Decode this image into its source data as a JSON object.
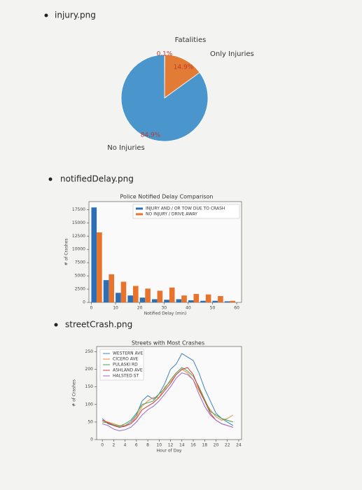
{
  "bullets": [
    "injury.png",
    "notifiedDelay.png",
    "streetCrash.png"
  ],
  "chart_data": [
    {
      "type": "pie",
      "categories": [
        "Fatalities",
        "Only Injuries",
        "No Injuries"
      ],
      "values": [
        0.1,
        14.9,
        84.9
      ],
      "value_labels": [
        "0.1%",
        "14.9%",
        "84.9%"
      ],
      "colors": [
        "#4caf50",
        "#e27b36",
        "#4a96cc"
      ]
    },
    {
      "type": "bar",
      "title": "Police Notified Delay Comparison",
      "x_label": "Notified Delay (min)",
      "y_label": "# of Crashes",
      "x": [
        0,
        5,
        10,
        15,
        20,
        25,
        30,
        35,
        40,
        45,
        50,
        55
      ],
      "series": [
        {
          "name": "INJURY AND / OR TOW DUE TO CRASH",
          "color": "#2c6fb5",
          "values": [
            17900,
            4200,
            1800,
            1300,
            900,
            600,
            500,
            600,
            400,
            300,
            300,
            200
          ]
        },
        {
          "name": "NO INJURY / DRIVE AWAY",
          "color": "#e8732c",
          "values": [
            13200,
            5300,
            3900,
            3100,
            2600,
            2200,
            2800,
            1300,
            1600,
            1500,
            1200,
            300
          ]
        }
      ],
      "xlim": [
        -1,
        62
      ],
      "xticks": [
        0,
        10,
        20,
        30,
        40,
        50,
        60
      ],
      "ylim": [
        0,
        19000
      ],
      "yticks": [
        0,
        2500,
        5000,
        7500,
        10000,
        12500,
        15000,
        17500
      ]
    },
    {
      "type": "line",
      "title": "Streets with Most Crashes",
      "x_label": "Hour of Day",
      "y_label": "# of Crashes",
      "x": [
        0,
        1,
        2,
        3,
        4,
        5,
        6,
        7,
        8,
        9,
        10,
        11,
        12,
        13,
        14,
        15,
        16,
        17,
        18,
        19,
        20,
        21,
        22,
        23
      ],
      "series": [
        {
          "name": "WESTERN AVE",
          "color": "#3b7fc0",
          "values": [
            60,
            45,
            40,
            35,
            40,
            50,
            70,
            110,
            125,
            115,
            130,
            160,
            200,
            215,
            245,
            235,
            225,
            190,
            145,
            110,
            75,
            60,
            50,
            40
          ]
        },
        {
          "name": "CICERO AVE",
          "color": "#f08a3c",
          "values": [
            55,
            50,
            45,
            40,
            40,
            45,
            65,
            95,
            110,
            120,
            120,
            150,
            165,
            185,
            200,
            190,
            170,
            140,
            110,
            85,
            65,
            55,
            60,
            70
          ]
        },
        {
          "name": "PULASKI RD",
          "color": "#3fa34d",
          "values": [
            50,
            48,
            42,
            38,
            45,
            55,
            75,
            100,
            105,
            110,
            130,
            145,
            170,
            190,
            205,
            195,
            180,
            150,
            115,
            80,
            70,
            60,
            55,
            50
          ]
        },
        {
          "name": "ASHLAND AVE",
          "color": "#d33b3b",
          "values": [
            55,
            48,
            40,
            35,
            38,
            45,
            60,
            85,
            95,
            105,
            120,
            140,
            160,
            185,
            200,
            205,
            185,
            145,
            110,
            75,
            55,
            45,
            40,
            35
          ]
        },
        {
          "name": "HALSTED ST",
          "color": "#9a6ac4",
          "values": [
            45,
            40,
            30,
            25,
            28,
            35,
            50,
            70,
            85,
            95,
            110,
            130,
            150,
            175,
            190,
            185,
            170,
            130,
            95,
            70,
            55,
            45,
            40,
            35
          ]
        }
      ],
      "xlim": [
        -1,
        24.5
      ],
      "xticks": [
        0,
        2,
        4,
        6,
        8,
        10,
        12,
        14,
        16,
        18,
        20,
        22,
        24
      ],
      "ylim": [
        0,
        265
      ],
      "yticks": [
        0,
        50,
        100,
        150,
        200,
        250
      ]
    }
  ]
}
